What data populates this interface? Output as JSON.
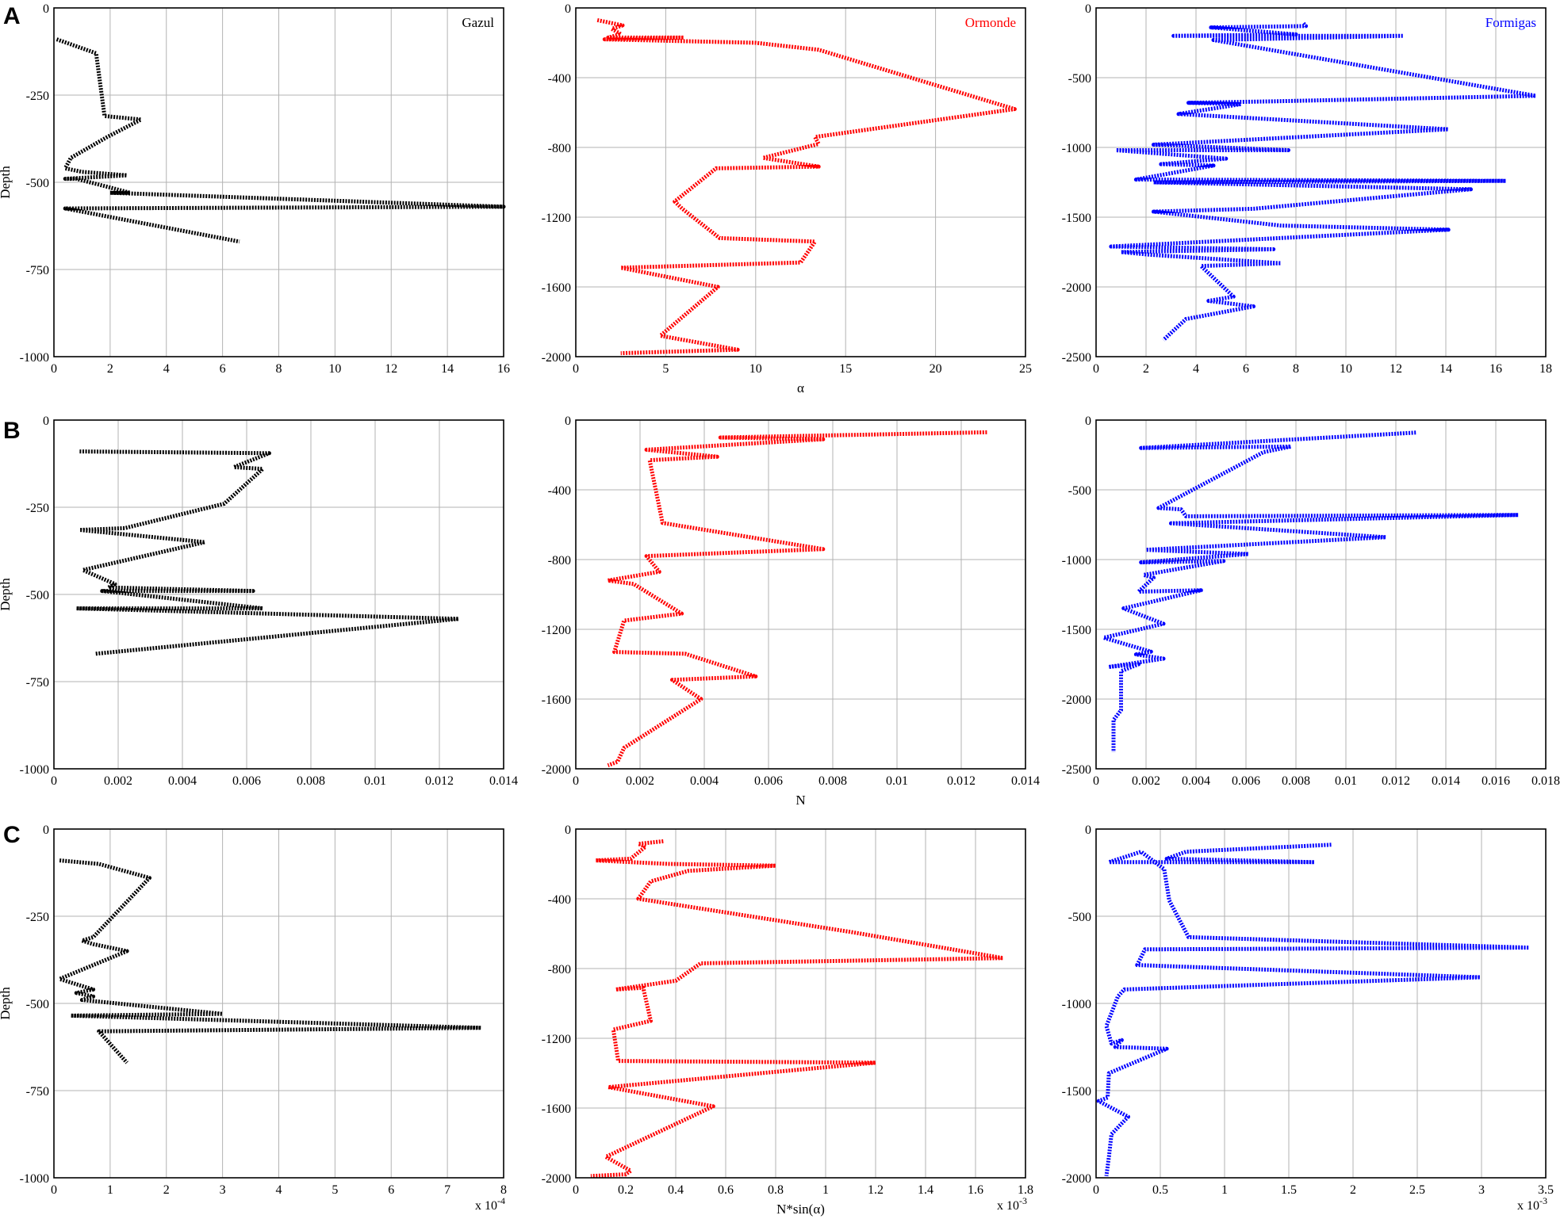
{
  "figure": {
    "panel_letters": [
      "A",
      "B",
      "C"
    ],
    "ylabel": "Depth",
    "xlabels": [
      "α",
      "N",
      "N*sin(α)"
    ],
    "titles": [
      "Gazul",
      "Ormonde",
      "Formigas"
    ],
    "colors": {
      "Gazul": "#000000",
      "Ormonde": "#ff0000",
      "Formigas": "#0000ff"
    }
  },
  "chart_data": [
    {
      "type": "line",
      "row": "A",
      "column": 0,
      "title": "Gazul",
      "title_color": "#000000",
      "xlabel": "",
      "ylabel": "Depth",
      "xlim": [
        0,
        16
      ],
      "ylim": [
        -1000,
        0
      ],
      "xticks": [
        "0",
        "2",
        "4",
        "6",
        "8",
        "10",
        "12",
        "14",
        "16"
      ],
      "yticks": [
        "0",
        "-250",
        "-500",
        "-750",
        "-1000"
      ],
      "grid": true,
      "multiplier": "",
      "series": [
        {
          "color": "#000000",
          "x": [
            0.1,
            1.5,
            1.8,
            3.1,
            1.9,
            0.6,
            0.4,
            1.0,
            2.6,
            0.4,
            0.8,
            2.0,
            2.7,
            2.0,
            16.0,
            0.4,
            6.6
          ],
          "y": [
            -90,
            -130,
            -310,
            -320,
            -370,
            -430,
            -460,
            -470,
            -480,
            -490,
            -490,
            -515,
            -530,
            -530,
            -570,
            -575,
            -670
          ]
        }
      ]
    },
    {
      "type": "line",
      "row": "A",
      "column": 1,
      "title": "Ormonde",
      "title_color": "#ff0000",
      "xlabel": "α",
      "ylabel": "",
      "xlim": [
        0,
        25
      ],
      "ylim": [
        -2000,
        0
      ],
      "xticks": [
        "0",
        "5",
        "10",
        "15",
        "20",
        "25"
      ],
      "yticks": [
        "0",
        "-400",
        "-800",
        "-1200",
        "-1600",
        "-2000"
      ],
      "grid": true,
      "multiplier": "",
      "series": [
        {
          "color": "#ff0000",
          "x": [
            1.2,
            2.6,
            2.0,
            2.5,
            1.8,
            6.0,
            1.6,
            10.0,
            13.5,
            24.4,
            13.3,
            13.5,
            10.4,
            13.5,
            7.8,
            5.5,
            5.9,
            8.0,
            13.3,
            12.5,
            2.5,
            7.9,
            4.7,
            9.0,
            2.5
          ],
          "y": [
            -70,
            -100,
            -120,
            -150,
            -170,
            -170,
            -180,
            -200,
            -240,
            -580,
            -740,
            -780,
            -860,
            -910,
            -920,
            -1110,
            -1150,
            -1320,
            -1340,
            -1460,
            -1490,
            -1600,
            -1880,
            -1960,
            -1980
          ]
        }
      ]
    },
    {
      "type": "line",
      "row": "A",
      "column": 2,
      "title": "Formigas",
      "title_color": "#0000ff",
      "xlabel": "",
      "ylabel": "",
      "xlim": [
        0,
        18
      ],
      "ylim": [
        -2500,
        0
      ],
      "xticks": [
        "0",
        "2",
        "4",
        "6",
        "8",
        "10",
        "12",
        "14",
        "16",
        "18"
      ],
      "yticks": [
        "0",
        "-500",
        "-1000",
        "-1500",
        "-2000",
        "-2500"
      ],
      "grid": true,
      "multiplier": "",
      "series": [
        {
          "color": "#0000ff",
          "x": [
            8.3,
            8.4,
            4.6,
            8.0,
            3.1,
            12.3,
            4.7,
            17.6,
            7.0,
            3.7,
            5.8,
            3.3,
            14.1,
            2.3,
            7.7,
            0.8,
            5.2,
            2.6,
            4.7,
            1.6,
            16.4,
            2.3,
            15.0,
            6.3,
            2.3,
            7.4,
            14.1,
            0.6,
            7.1,
            1.0,
            2.2,
            7.4,
            4.2,
            5.5,
            4.5,
            6.3,
            3.6,
            2.7
          ],
          "y": [
            -110,
            -130,
            -140,
            -190,
            -200,
            -200,
            -230,
            -630,
            -670,
            -680,
            -690,
            -760,
            -870,
            -980,
            -1020,
            -1020,
            -1080,
            -1120,
            -1130,
            -1230,
            -1240,
            -1250,
            -1300,
            -1440,
            -1460,
            -1560,
            -1590,
            -1710,
            -1730,
            -1750,
            -1770,
            -1830,
            -1850,
            -2070,
            -2100,
            -2140,
            -2230,
            -2380
          ]
        }
      ]
    },
    {
      "type": "line",
      "row": "B",
      "column": 0,
      "title": "",
      "title_color": "",
      "xlabel": "",
      "ylabel": "Depth",
      "xlim": [
        0,
        0.014
      ],
      "ylim": [
        -1000,
        0
      ],
      "xticks": [
        "0",
        "0.002",
        "0.004",
        "0.006",
        "0.008",
        "0.01",
        "0.012",
        "0.014"
      ],
      "yticks": [
        "0",
        "-250",
        "-500",
        "-750",
        "-1000"
      ],
      "grid": true,
      "multiplier": "",
      "series": [
        {
          "color": "#000000",
          "x": [
            0.0008,
            0.0067,
            0.0056,
            0.0065,
            0.0053,
            0.0022,
            0.0008,
            0.0047,
            0.0009,
            0.0019,
            0.0017,
            0.0062,
            0.0015,
            0.0065,
            0.0007,
            0.0126,
            0.0013
          ],
          "y": [
            -90,
            -95,
            -135,
            -140,
            -240,
            -310,
            -315,
            -350,
            -430,
            -470,
            -480,
            -490,
            -490,
            -540,
            -540,
            -570,
            -670
          ]
        }
      ]
    },
    {
      "type": "line",
      "row": "B",
      "column": 1,
      "title": "",
      "title_color": "",
      "xlabel": "N",
      "ylabel": "",
      "xlim": [
        0,
        0.014
      ],
      "ylim": [
        -2000,
        0
      ],
      "xticks": [
        "0",
        "0.002",
        "0.004",
        "0.006",
        "0.008",
        "0.01",
        "0.012",
        "0.014"
      ],
      "yticks": [
        "0",
        "-400",
        "-800",
        "-1200",
        "-1600",
        "-2000"
      ],
      "grid": true,
      "multiplier": "",
      "series": [
        {
          "color": "#ff0000",
          "x": [
            0.0128,
            0.0045,
            0.0077,
            0.0022,
            0.0044,
            0.0023,
            0.0027,
            0.0077,
            0.0022,
            0.0026,
            0.001,
            0.0018,
            0.0033,
            0.0015,
            0.0012,
            0.0034,
            0.0056,
            0.003,
            0.0039,
            0.0015,
            0.0013,
            0.001
          ],
          "y": [
            -70,
            -100,
            -110,
            -170,
            -210,
            -230,
            -590,
            -740,
            -780,
            -870,
            -920,
            -940,
            -1110,
            -1150,
            -1330,
            -1340,
            -1470,
            -1490,
            -1600,
            -1880,
            -1960,
            -1980
          ]
        }
      ]
    },
    {
      "type": "line",
      "row": "B",
      "column": 2,
      "title": "",
      "title_color": "",
      "xlabel": "",
      "ylabel": "",
      "xlim": [
        0,
        0.018
      ],
      "ylim": [
        -2500,
        0
      ],
      "xticks": [
        "0",
        "0.002",
        "0.004",
        "0.006",
        "0.008",
        "0.01",
        "0.012",
        "0.014",
        "0.016",
        "0.018"
      ],
      "yticks": [
        "0",
        "-500",
        "-1000",
        "-1500",
        "-2000",
        "-2500"
      ],
      "grid": true,
      "multiplier": "",
      "series": [
        {
          "color": "#0000ff",
          "x": [
            0.0128,
            0.0018,
            0.0078,
            0.0067,
            0.0025,
            0.0034,
            0.0036,
            0.0169,
            0.003,
            0.0116,
            0.002,
            0.0061,
            0.0018,
            0.0051,
            0.0019,
            0.0023,
            0.0017,
            0.0042,
            0.0011,
            0.0027,
            0.0003,
            0.0022,
            0.0016,
            0.0027,
            0.0005,
            0.0017,
            0.001,
            0.001,
            0.0007,
            0.0007
          ],
          "y": [
            -90,
            -200,
            -190,
            -230,
            -630,
            -640,
            -690,
            -680,
            -740,
            -840,
            -930,
            -960,
            -1020,
            -1010,
            -1110,
            -1130,
            -1230,
            -1220,
            -1350,
            -1460,
            -1560,
            -1660,
            -1680,
            -1710,
            -1770,
            -1750,
            -1800,
            -2080,
            -2150,
            -2380
          ]
        }
      ]
    },
    {
      "type": "line",
      "row": "C",
      "column": 0,
      "title": "",
      "title_color": "",
      "xlabel": "",
      "ylabel": "Depth",
      "xlim": [
        0,
        8
      ],
      "ylim": [
        -1000,
        0
      ],
      "xticks": [
        "0",
        "1",
        "2",
        "3",
        "4",
        "5",
        "6",
        "7",
        "8"
      ],
      "yticks": [
        "0",
        "-250",
        "-500",
        "-750",
        "-1000"
      ],
      "grid": true,
      "multiplier": "x 10-4",
      "series": [
        {
          "color": "#000000",
          "x": [
            0.1,
            0.8,
            1.7,
            0.7,
            0.5,
            0.7,
            1.3,
            0.1,
            0.7,
            0.4,
            0.7,
            0.5,
            3.0,
            0.3,
            7.6,
            0.8,
            1.3
          ],
          "y": [
            -90,
            -100,
            -140,
            -310,
            -320,
            -330,
            -350,
            -430,
            -460,
            -470,
            -480,
            -490,
            -530,
            -535,
            -570,
            -580,
            -670
          ]
        }
      ]
    },
    {
      "type": "line",
      "row": "C",
      "column": 1,
      "title": "",
      "title_color": "",
      "xlabel": "N*sin(α)",
      "ylabel": "",
      "xlim": [
        0,
        1.8
      ],
      "ylim": [
        -2000,
        0
      ],
      "xticks": [
        "0",
        "0.2",
        "0.4",
        "0.6",
        "0.8",
        "1",
        "1.2",
        "1.4",
        "1.6",
        "1.8"
      ],
      "yticks": [
        "0",
        "-400",
        "-800",
        "-1200",
        "-1600",
        "-2000"
      ],
      "grid": true,
      "multiplier": "x 10-3",
      "series": [
        {
          "color": "#ff0000",
          "x": [
            0.35,
            0.25,
            0.28,
            0.22,
            0.08,
            0.37,
            0.8,
            0.45,
            0.3,
            0.25,
            1.1,
            1.71,
            0.5,
            0.4,
            0.16,
            0.27,
            0.3,
            0.15,
            0.17,
            1.2,
            0.13,
            0.55,
            0.12,
            0.22,
            0.2,
            0.06
          ],
          "y": [
            -70,
            -85,
            -100,
            -170,
            -180,
            -200,
            -210,
            -240,
            -300,
            -400,
            -590,
            -740,
            -770,
            -870,
            -920,
            -910,
            -1100,
            -1150,
            -1330,
            -1340,
            -1480,
            -1590,
            -1880,
            -1960,
            -1980,
            -1990
          ]
        }
      ]
    },
    {
      "type": "line",
      "row": "C",
      "column": 2,
      "title": "",
      "title_color": "",
      "xlabel": "",
      "ylabel": "",
      "xlim": [
        0,
        3.5
      ],
      "ylim": [
        -2000,
        0
      ],
      "xticks": [
        "0",
        "0.5",
        "1",
        "1.5",
        "2",
        "2.5",
        "3",
        "3.5"
      ],
      "yticks": [
        "0",
        "-500",
        "-1000",
        "-1500",
        "-2000"
      ],
      "grid": true,
      "multiplier": "x 10-3",
      "series": [
        {
          "color": "#0000ff",
          "x": [
            1.83,
            0.7,
            0.55,
            1.7,
            0.1,
            0.35,
            0.53,
            0.57,
            0.72,
            3.37,
            0.38,
            0.32,
            2.99,
            0.22,
            0.17,
            0.08,
            0.12,
            0.2,
            0.15,
            0.55,
            0.1,
            0.09,
            0.02,
            0.25,
            0.12,
            0.1,
            0.08
          ],
          "y": [
            -90,
            -130,
            -170,
            -190,
            -190,
            -130,
            -230,
            -410,
            -620,
            -680,
            -690,
            -780,
            -850,
            -920,
            -960,
            -1130,
            -1230,
            -1210,
            -1250,
            -1260,
            -1400,
            -1540,
            -1560,
            -1650,
            -1750,
            -1880,
            -1990
          ]
        }
      ]
    }
  ]
}
